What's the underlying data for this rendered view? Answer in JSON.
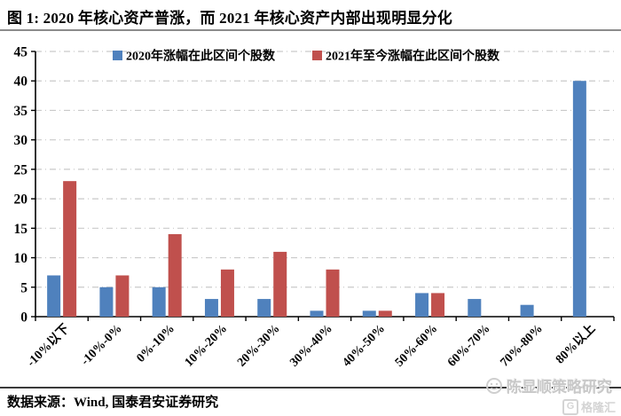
{
  "header": {
    "title": "图 1:  2020 年核心资产普涨，而 2021 年核心资产内部出现明显分化"
  },
  "chart_data": {
    "type": "bar",
    "title": "",
    "xlabel": "",
    "ylabel": "",
    "categories": [
      "-10%以下",
      "-10%-0%",
      "0%-10%",
      "10%-20%",
      "20%-30%",
      "30%-40%",
      "40%-50%",
      "50%-60%",
      "60%-70%",
      "70%-80%",
      "80%以上"
    ],
    "series": [
      {
        "name": "2020年涨幅在此区间个股数",
        "color": "#4F81BD",
        "values": [
          7,
          5,
          5,
          3,
          3,
          1,
          1,
          4,
          3,
          2,
          40
        ]
      },
      {
        "name": "2021年至今涨幅在此区间个股数",
        "color": "#C0504D",
        "values": [
          23,
          7,
          14,
          8,
          11,
          8,
          1,
          4,
          0,
          0,
          0
        ]
      }
    ],
    "ylim": [
      0,
      45
    ],
    "ytick_step": 5,
    "yticks": [
      0,
      5,
      10,
      15,
      20,
      25,
      30,
      35,
      40,
      45
    ],
    "grid": "horizontal-dash-dot",
    "legend_position": "top-inside"
  },
  "colors": {
    "grid": "#c9c9c9",
    "axis": "#000000",
    "legend_text": "#17375E",
    "tick_label": "#000000"
  },
  "footer": {
    "source": "数据来源：Wind, 国泰君安证券研究"
  },
  "watermark": {
    "text": "陈显顺策略研究",
    "face_icon": "smiley-face",
    "brand_badge": "G",
    "brand_name": "格隆汇"
  }
}
